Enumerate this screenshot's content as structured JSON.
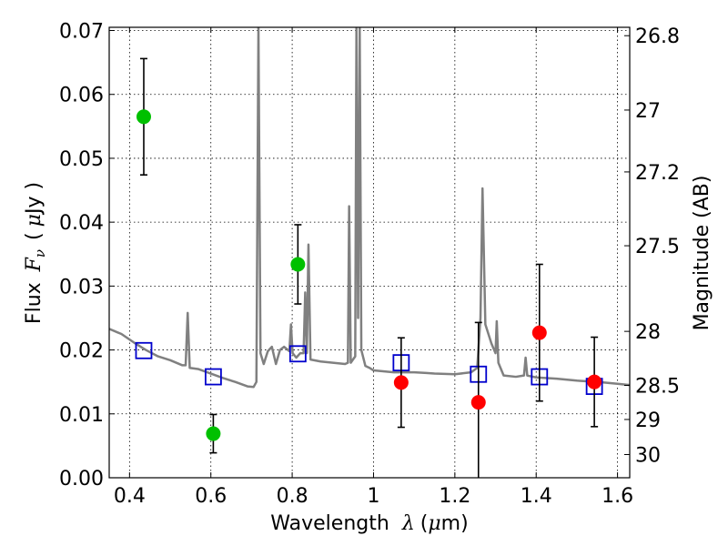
{
  "chart_data": {
    "type": "scatter",
    "xlabel_text": "Wavelength",
    "xlabel_symbol": "λ",
    "xlabel_unit_open": "(",
    "xlabel_unit_mu": "μ",
    "xlabel_unit_rest": "m)",
    "ylabel_text": "Flux",
    "ylabel_symbol": "F",
    "ylabel_subscript": "ν",
    "ylabel_unit_open": "(",
    "ylabel_unit_mu": "μ",
    "ylabel_unit_rest": "Jy )",
    "y2label": "Magnitude (AB)",
    "xlim": [
      0.35,
      1.63
    ],
    "ylim": [
      0.0,
      0.0705
    ],
    "grid": true,
    "x_ticks": [
      0.4,
      0.6,
      0.8,
      1.0,
      1.2,
      1.4,
      1.6
    ],
    "x_tick_labels": [
      "0.4",
      "0.6",
      "0.8",
      "1",
      "1.2",
      "1.4",
      "1.6"
    ],
    "y_ticks": [
      0.0,
      0.01,
      0.02,
      0.03,
      0.04,
      0.05,
      0.06,
      0.07
    ],
    "y_tick_labels": [
      "0.00",
      "0.01",
      "0.02",
      "0.03",
      "0.04",
      "0.05",
      "0.06",
      "0.07"
    ],
    "y2_ticks": [
      {
        "label": "26.8",
        "mag": 26.8
      },
      {
        "label": "27",
        "mag": 27.0
      },
      {
        "label": "27.2",
        "mag": 27.2
      },
      {
        "label": "27.5",
        "mag": 27.5
      },
      {
        "label": "28",
        "mag": 28.0
      },
      {
        "label": "28.5",
        "mag": 28.5
      },
      {
        "label": "29",
        "mag": 29.0
      },
      {
        "label": "30",
        "mag": 30.0
      }
    ],
    "colors": {
      "green": "#00c000",
      "red": "#ff0000",
      "model_box": "#0000cc",
      "spectrum": "#808080",
      "errorbar": "#000000"
    },
    "series": [
      {
        "marker": "green-circle",
        "points": [
          {
            "x": 0.435,
            "y": 0.0565,
            "yerr": 0.0091
          },
          {
            "x": 0.606,
            "y": 0.0069,
            "yerr": 0.003
          },
          {
            "x": 0.814,
            "y": 0.0334,
            "yerr": 0.0062
          }
        ]
      },
      {
        "marker": "red-circle",
        "points": [
          {
            "x": 1.068,
            "y": 0.0149,
            "yerr": 0.007
          },
          {
            "x": 1.258,
            "y": 0.0118,
            "yerr": 0.0125
          },
          {
            "x": 1.408,
            "y": 0.0227,
            "yerr": 0.0107
          },
          {
            "x": 1.543,
            "y": 0.015,
            "yerr": 0.007
          }
        ]
      },
      {
        "marker": "blue-open-square",
        "points": [
          {
            "x": 0.435,
            "y": 0.0199
          },
          {
            "x": 0.606,
            "y": 0.0158
          },
          {
            "x": 0.814,
            "y": 0.0194
          },
          {
            "x": 1.068,
            "y": 0.018
          },
          {
            "x": 1.258,
            "y": 0.0162
          },
          {
            "x": 1.408,
            "y": 0.0158
          },
          {
            "x": 1.543,
            "y": 0.0143
          }
        ]
      },
      {
        "marker": "gray-line",
        "points": [
          {
            "x": 0.35,
            "y": 0.0233
          },
          {
            "x": 0.38,
            "y": 0.0225
          },
          {
            "x": 0.41,
            "y": 0.0212
          },
          {
            "x": 0.44,
            "y": 0.02
          },
          {
            "x": 0.47,
            "y": 0.019
          },
          {
            "x": 0.5,
            "y": 0.0184
          },
          {
            "x": 0.53,
            "y": 0.0176
          },
          {
            "x": 0.538,
            "y": 0.0176
          },
          {
            "x": 0.543,
            "y": 0.0258
          },
          {
            "x": 0.548,
            "y": 0.0172
          },
          {
            "x": 0.57,
            "y": 0.017
          },
          {
            "x": 0.6,
            "y": 0.0163
          },
          {
            "x": 0.63,
            "y": 0.0156
          },
          {
            "x": 0.66,
            "y": 0.015
          },
          {
            "x": 0.69,
            "y": 0.0143
          },
          {
            "x": 0.705,
            "y": 0.0142
          },
          {
            "x": 0.712,
            "y": 0.015
          },
          {
            "x": 0.717,
            "y": 0.0705
          },
          {
            "x": 0.722,
            "y": 0.0195
          },
          {
            "x": 0.73,
            "y": 0.0178
          },
          {
            "x": 0.74,
            "y": 0.0198
          },
          {
            "x": 0.75,
            "y": 0.0205
          },
          {
            "x": 0.76,
            "y": 0.0178
          },
          {
            "x": 0.77,
            "y": 0.02
          },
          {
            "x": 0.78,
            "y": 0.0205
          },
          {
            "x": 0.793,
            "y": 0.0198
          },
          {
            "x": 0.797,
            "y": 0.024
          },
          {
            "x": 0.801,
            "y": 0.0195
          },
          {
            "x": 0.81,
            "y": 0.0188
          },
          {
            "x": 0.82,
            "y": 0.0195
          },
          {
            "x": 0.828,
            "y": 0.0195
          },
          {
            "x": 0.832,
            "y": 0.029
          },
          {
            "x": 0.836,
            "y": 0.0195
          },
          {
            "x": 0.84,
            "y": 0.0365
          },
          {
            "x": 0.845,
            "y": 0.0185
          },
          {
            "x": 0.87,
            "y": 0.0182
          },
          {
            "x": 0.9,
            "y": 0.018
          },
          {
            "x": 0.93,
            "y": 0.0178
          },
          {
            "x": 0.937,
            "y": 0.018
          },
          {
            "x": 0.94,
            "y": 0.0425
          },
          {
            "x": 0.944,
            "y": 0.018
          },
          {
            "x": 0.955,
            "y": 0.019
          },
          {
            "x": 0.958,
            "y": 0.0705
          },
          {
            "x": 0.962,
            "y": 0.025
          },
          {
            "x": 0.966,
            "y": 0.0705
          },
          {
            "x": 0.97,
            "y": 0.02
          },
          {
            "x": 0.98,
            "y": 0.0175
          },
          {
            "x": 0.99,
            "y": 0.0172
          },
          {
            "x": 1.0,
            "y": 0.0168
          },
          {
            "x": 1.05,
            "y": 0.0165
          },
          {
            "x": 1.1,
            "y": 0.0165
          },
          {
            "x": 1.13,
            "y": 0.0164
          },
          {
            "x": 1.15,
            "y": 0.0163
          },
          {
            "x": 1.2,
            "y": 0.0162
          },
          {
            "x": 1.24,
            "y": 0.0165
          },
          {
            "x": 1.255,
            "y": 0.0172
          },
          {
            "x": 1.263,
            "y": 0.025
          },
          {
            "x": 1.268,
            "y": 0.0453
          },
          {
            "x": 1.275,
            "y": 0.024
          },
          {
            "x": 1.29,
            "y": 0.021
          },
          {
            "x": 1.3,
            "y": 0.0195
          },
          {
            "x": 1.303,
            "y": 0.0245
          },
          {
            "x": 1.307,
            "y": 0.018
          },
          {
            "x": 1.32,
            "y": 0.016
          },
          {
            "x": 1.35,
            "y": 0.0158
          },
          {
            "x": 1.37,
            "y": 0.016
          },
          {
            "x": 1.374,
            "y": 0.0188
          },
          {
            "x": 1.378,
            "y": 0.016
          },
          {
            "x": 1.4,
            "y": 0.0157
          },
          {
            "x": 1.45,
            "y": 0.0155
          },
          {
            "x": 1.5,
            "y": 0.0152
          },
          {
            "x": 1.55,
            "y": 0.015
          },
          {
            "x": 1.6,
            "y": 0.0147
          },
          {
            "x": 1.63,
            "y": 0.0145
          }
        ]
      }
    ]
  }
}
